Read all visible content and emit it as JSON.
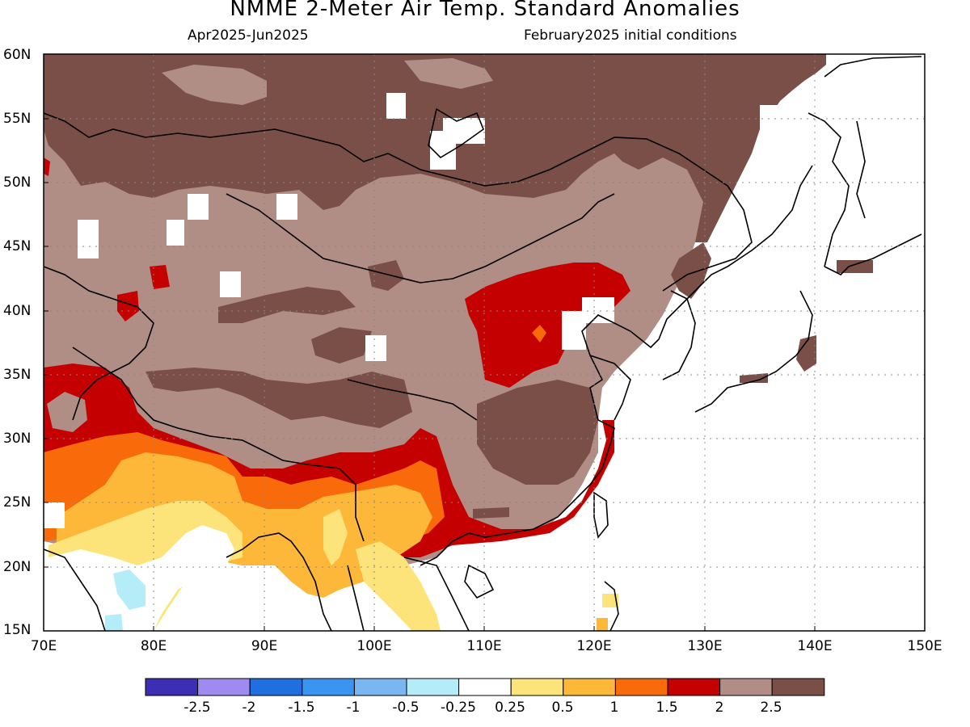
{
  "title": "NMME 2-Meter Air Temp. Standard Anomalies",
  "subtitle_left": "Apr2025-Jun2025",
  "subtitle_right": "February2025 initial conditions",
  "map": {
    "lon_range": [
      70,
      150
    ],
    "lat_range": [
      15,
      60
    ],
    "lat_labels": [
      "60N",
      "55N",
      "50N",
      "45N",
      "40N",
      "35N",
      "30N",
      "25N",
      "20N",
      "15N"
    ],
    "lon_labels": [
      "70E",
      "80E",
      "90E",
      "100E",
      "110E",
      "120E",
      "130E",
      "140E",
      "150E"
    ],
    "gridlines": "dotted"
  },
  "colorbar": {
    "labels": [
      "-2.5",
      "-2",
      "-1.5",
      "-1",
      "-0.5",
      "-0.25",
      "0.25",
      "0.5",
      "1",
      "1.5",
      "2",
      "2.5"
    ],
    "colors": [
      "#3c2fb5",
      "#9f8af0",
      "#1f6fe0",
      "#3a95f0",
      "#79b6f2",
      "#b4ecf8",
      "#ffffff",
      "#fde47a",
      "#fdb83a",
      "#f96a0a",
      "#c50000",
      "#b08d85",
      "#7a4f47"
    ]
  },
  "colors": {
    "dark_brown": "#7a4f47",
    "light_brown": "#b08d85",
    "dark_red": "#c50000",
    "orange": "#f96a0a",
    "light_orange": "#fdb83a",
    "yellow": "#fde47a",
    "light_blue": "#b4ecf8"
  }
}
